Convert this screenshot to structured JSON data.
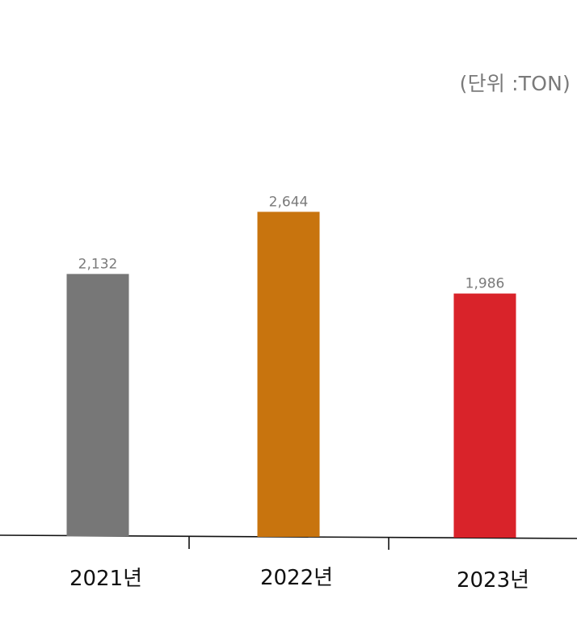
{
  "chart_data": {
    "type": "bar",
    "unit_label": "(단위 :TON)",
    "categories": [
      "2021년",
      "2022년",
      "2023년"
    ],
    "values": [
      2132,
      2644,
      1986
    ],
    "value_labels": [
      "2,132",
      "2,644",
      "1,986"
    ],
    "colors": [
      "#777777",
      "#C8740E",
      "#D9232A"
    ],
    "ylim": [
      0,
      4400
    ],
    "grid": false,
    "legend": "none"
  }
}
